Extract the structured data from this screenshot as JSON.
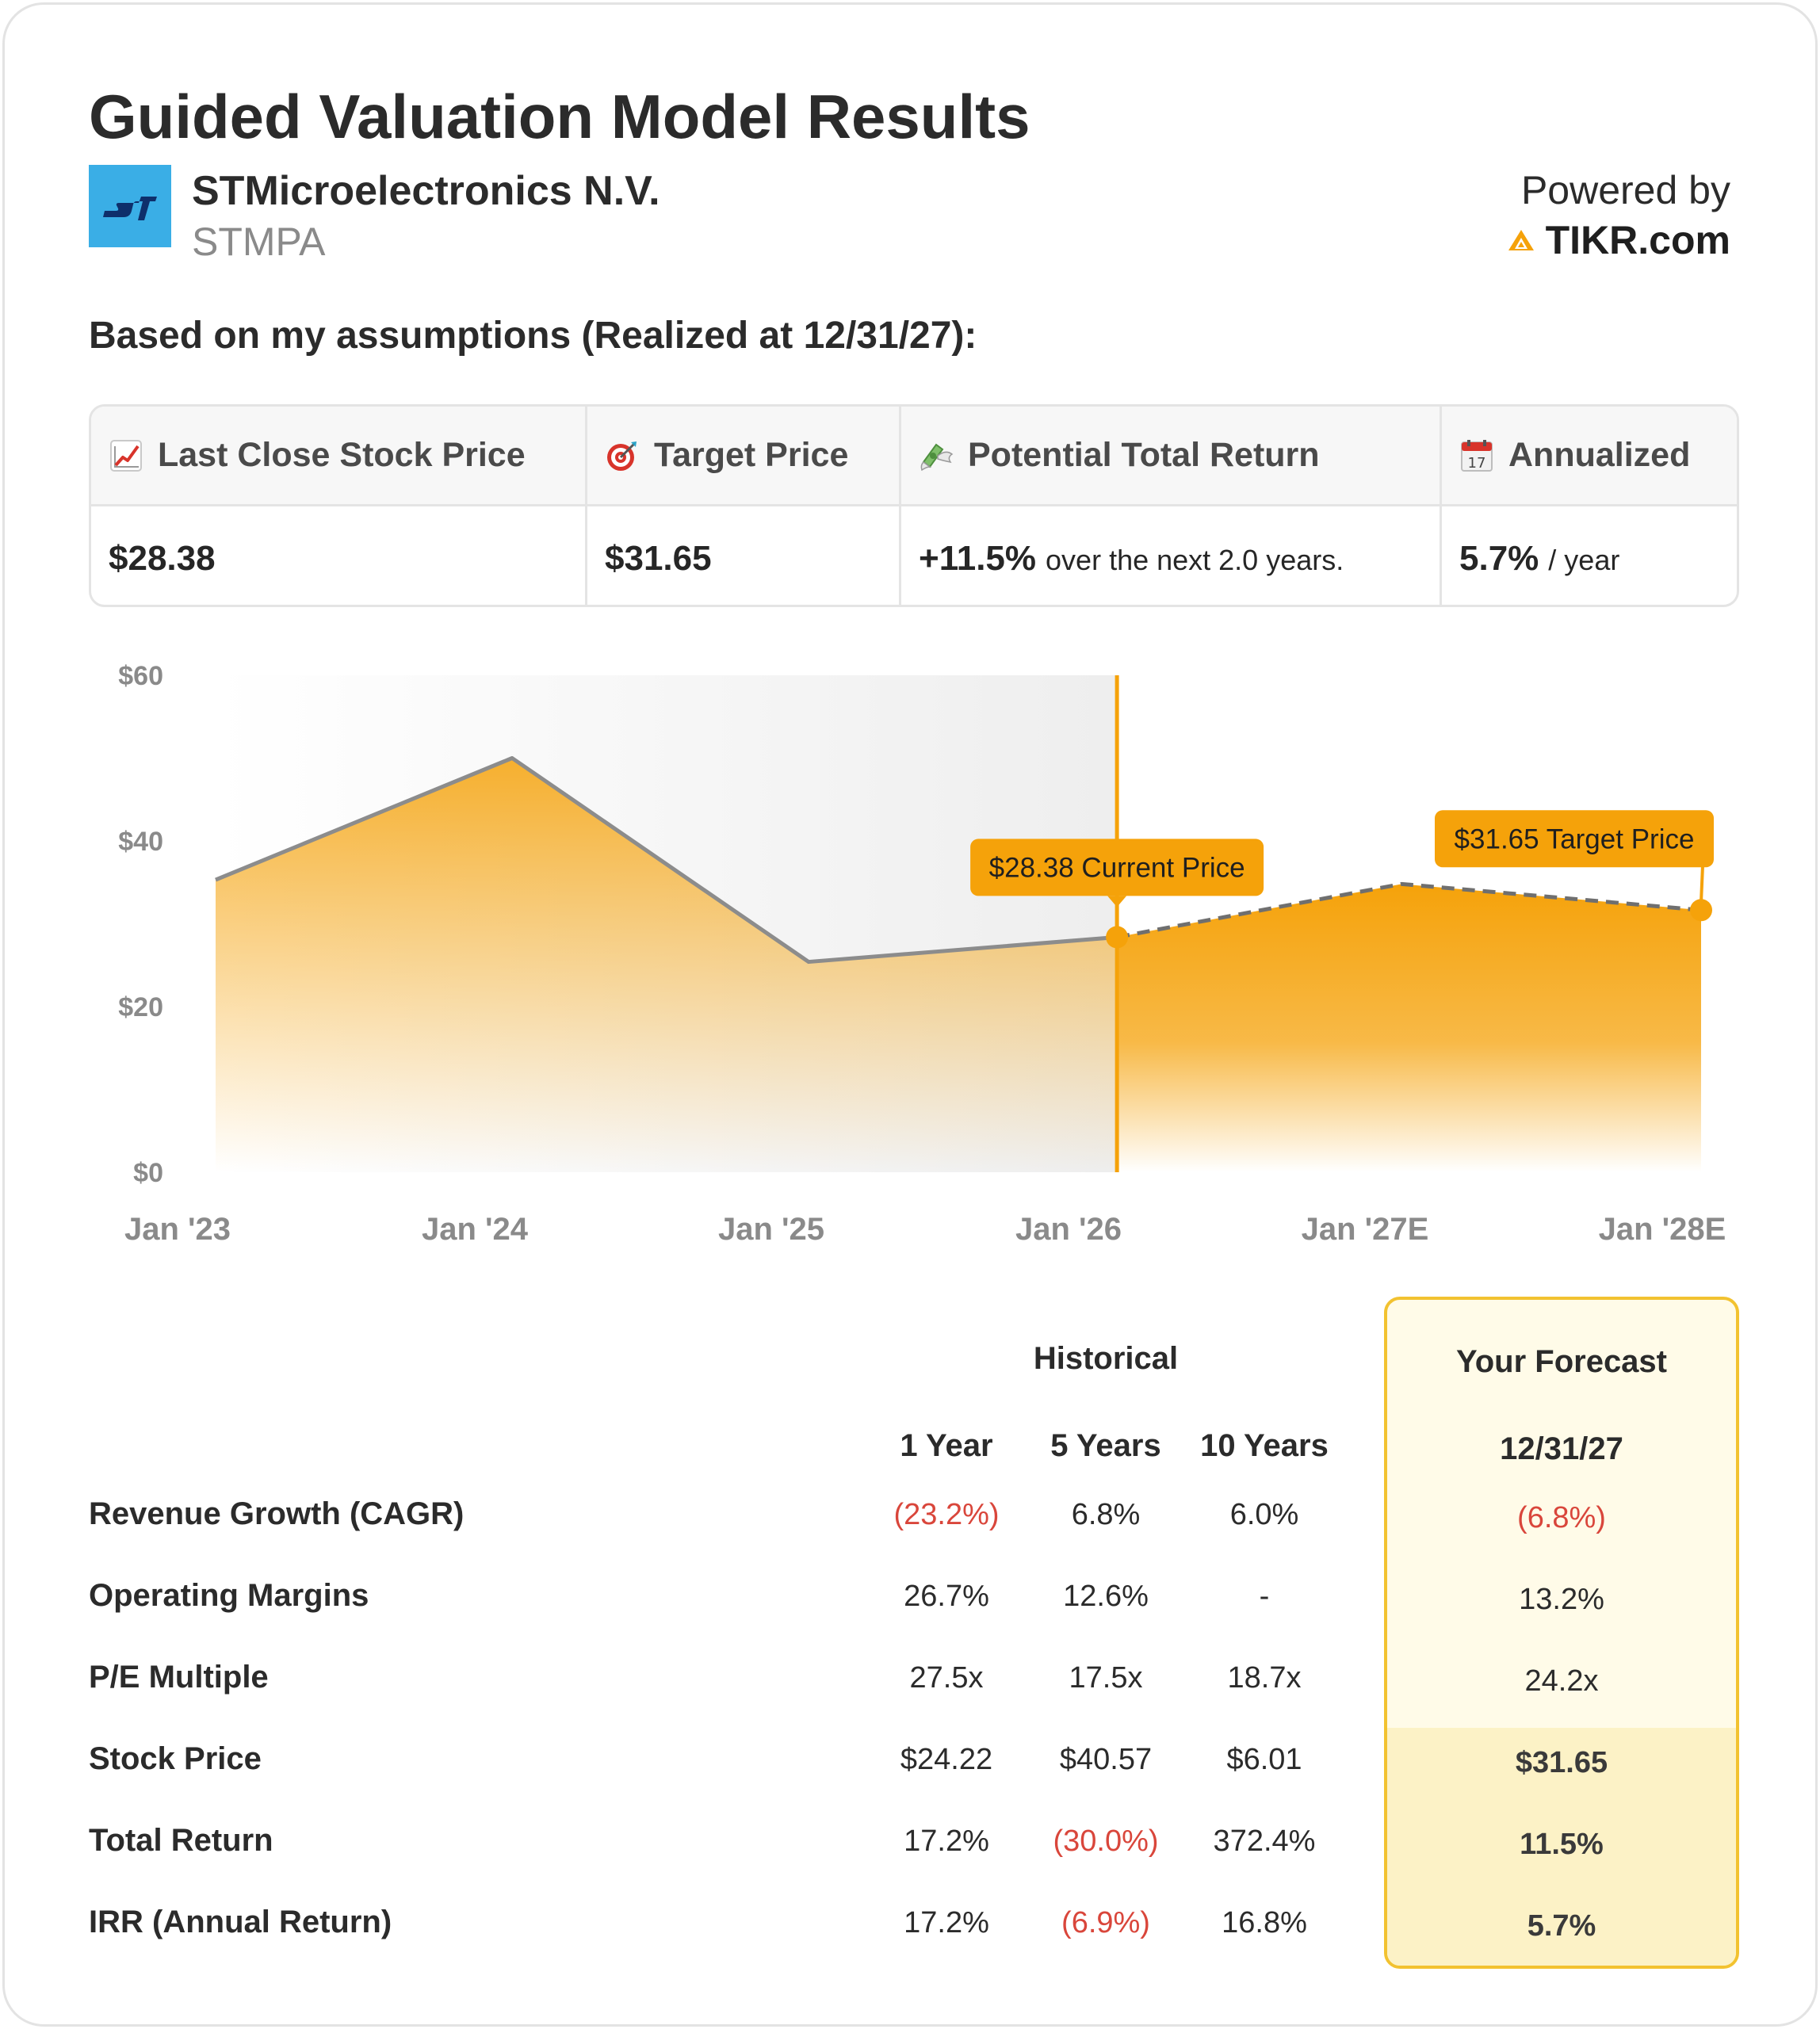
{
  "header": {
    "title": "Guided Valuation Model Results",
    "company_name": "STMicroelectronics N.V.",
    "ticker": "STMPA",
    "powered_by_label": "Powered by",
    "powered_by_brand": "TIKR.com",
    "logo_icon": "st-logo-icon",
    "brand_icon": "tikr-logo-icon"
  },
  "assumption_text": "Based on my assumptions (Realized at 12/31/27):",
  "summary": {
    "columns": [
      {
        "icon": "chart-increasing-icon",
        "label": "Last Close Stock Price",
        "value": "$28.38",
        "suffix": ""
      },
      {
        "icon": "direct-hit-icon",
        "label": "Target Price",
        "value": "$31.65",
        "suffix": ""
      },
      {
        "icon": "money-with-wings-icon",
        "label": "Potential Total Return",
        "value": "+11.5%",
        "suffix": "over the next 2.0 years."
      },
      {
        "icon": "calendar-icon",
        "label": "Annualized",
        "value": "5.7%",
        "suffix": "/ year"
      }
    ]
  },
  "chart_data": {
    "type": "area",
    "x": [
      "Jan '23",
      "Jan '24",
      "Jan '25",
      "Jan '26",
      "Jan '27E",
      "Jan '28E"
    ],
    "y_ticks": [
      "$60",
      "$40",
      "$20",
      "$0"
    ],
    "ylim": [
      0,
      60
    ],
    "historical": [
      {
        "x": 2023.12,
        "y": 35.3
      },
      {
        "x": 2024.12,
        "y": 50.0
      },
      {
        "x": 2025.12,
        "y": 25.4
      },
      {
        "x": 2026.16,
        "y": 28.38
      }
    ],
    "forecast": [
      {
        "x": 2026.16,
        "y": 28.38
      },
      {
        "x": 2027.12,
        "y": 34.8
      },
      {
        "x": 2028.13,
        "y": 31.65
      }
    ],
    "current_marker": {
      "x": 2026.16,
      "y": 28.38,
      "label": "$28.38 Current Price"
    },
    "target_marker": {
      "x": 2028.13,
      "y": 31.65,
      "label": "$31.65 Target Price"
    },
    "colors": {
      "accent": "#f5a20a",
      "line": "#8c8c8c",
      "label_bg": "#f5a20a"
    }
  },
  "metrics": {
    "historical_label": "Historical",
    "forecast_label": "Your Forecast",
    "columns": [
      "1 Year",
      "5 Years",
      "10 Years"
    ],
    "forecast_date": "12/31/27",
    "rows": [
      {
        "label": "Revenue Growth (CAGR)",
        "values": [
          "(23.2%)",
          "6.8%",
          "6.0%"
        ],
        "forecast": "(6.8%)"
      },
      {
        "label": "Operating Margins",
        "values": [
          "26.7%",
          "12.6%",
          "-"
        ],
        "forecast": "13.2%"
      },
      {
        "label": "P/E Multiple",
        "values": [
          "27.5x",
          "17.5x",
          "18.7x"
        ],
        "forecast": "24.2x"
      },
      {
        "label": "Stock Price",
        "values": [
          "$24.22",
          "$40.57",
          "$6.01"
        ],
        "forecast": "$31.65"
      },
      {
        "label": "Total Return",
        "values": [
          "17.2%",
          "(30.0%)",
          "372.4%"
        ],
        "forecast": "11.5%"
      },
      {
        "label": "IRR (Annual Return)",
        "values": [
          "17.2%",
          "(6.9%)",
          "16.8%"
        ],
        "forecast": "5.7%"
      }
    ],
    "negative_color": "#d9463b"
  }
}
